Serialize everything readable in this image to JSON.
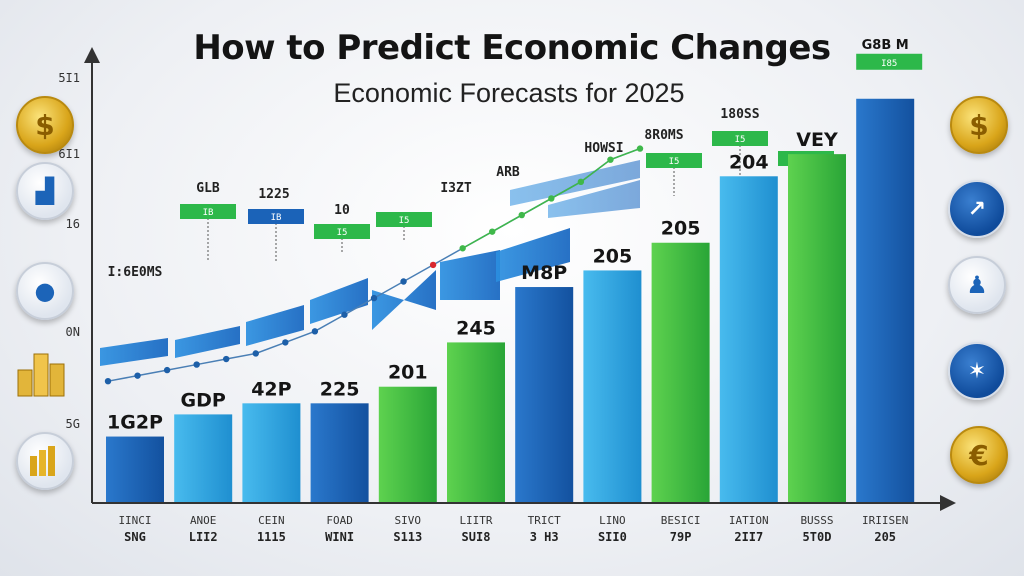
{
  "page": {
    "title": "How to Predict Economic Changes",
    "subtitle": "Economic Forecasts for 2025"
  },
  "colors": {
    "blue_dark": "#1b63b8",
    "blue_light": "#35a7e0",
    "green": "#3cbd3c",
    "axis": "#333333",
    "tag_green": "#2db84a"
  },
  "y_axis_ticks": [
    "5I1",
    "6I1",
    "16",
    "0N",
    "5G"
  ],
  "icons": {
    "left": [
      "dollar-coin-icon",
      "bar-growth-icon",
      "piggy-bank-icon",
      "coin-stack-icon",
      "gold-bars-icon"
    ],
    "right": [
      "dollar-coin-icon",
      "chart-growth-icon",
      "businessman-icon",
      "network-map-icon",
      "euro-coin-icon"
    ]
  },
  "chart_data": {
    "type": "bar",
    "title": "How to Predict Economic Changes",
    "subtitle": "Economic Forecasts for 2025",
    "grid": false,
    "categories": [
      {
        "line1": "IINCI",
        "line2": "SNG"
      },
      {
        "line1": "ANOE",
        "line2": "LII2"
      },
      {
        "line1": "CEIN",
        "line2": "1115"
      },
      {
        "line1": "FOAD",
        "line2": "WINI"
      },
      {
        "line1": "SIVO",
        "line2": "S113"
      },
      {
        "line1": "LIITR",
        "line2": "SUI8"
      },
      {
        "line1": "TRICT",
        "line2": "3 H3"
      },
      {
        "line1": "LINO",
        "line2": "SII0"
      },
      {
        "line1": "BESICI",
        "line2": "79P"
      },
      {
        "line1": "IATION",
        "line2": "2II7"
      },
      {
        "line1": "BUSSS",
        "line2": "5T0D"
      },
      {
        "line1": "IRIISEN",
        "line2": "205"
      }
    ],
    "values": [
      12,
      16,
      18,
      18,
      21,
      29,
      39,
      42,
      47,
      59,
      63,
      73
    ],
    "bar_colors": [
      "blue_dark",
      "blue_light",
      "blue_light",
      "blue_dark",
      "green",
      "green",
      "blue_dark",
      "blue_light",
      "green",
      "blue_light",
      "green",
      "blue_dark"
    ],
    "bar_labels": [
      "1G2P",
      "GDP",
      "42P",
      "225",
      "201",
      "245",
      "M8P",
      "205",
      "205",
      "204",
      "VEY",
      "G8B M"
    ],
    "bar_tags": [
      "",
      "",
      "",
      "",
      "",
      "",
      "",
      "",
      "",
      "",
      "",
      "I85"
    ],
    "trend_points": [
      22,
      23,
      24,
      25,
      26,
      27,
      29,
      31,
      34,
      37,
      40,
      43,
      46,
      49,
      52,
      55,
      58,
      62,
      64
    ],
    "annotations": [
      {
        "label": "I:6E0MS",
        "tag": ""
      },
      {
        "label": "GLB",
        "tag": "IB"
      },
      {
        "label": "1225",
        "tag": "IB"
      },
      {
        "label": "10",
        "tag": "I5"
      },
      {
        "label": "",
        "tag": "I5"
      },
      {
        "label": "I3ZT",
        "tag": ""
      },
      {
        "label": "ARB",
        "tag": ""
      },
      {
        "label": "HOWSI",
        "tag": ""
      },
      {
        "label": "8R0MS",
        "tag": "I5"
      },
      {
        "label": "180SS",
        "tag": "I5"
      },
      {
        "label": "",
        "tag": "I5"
      }
    ]
  }
}
